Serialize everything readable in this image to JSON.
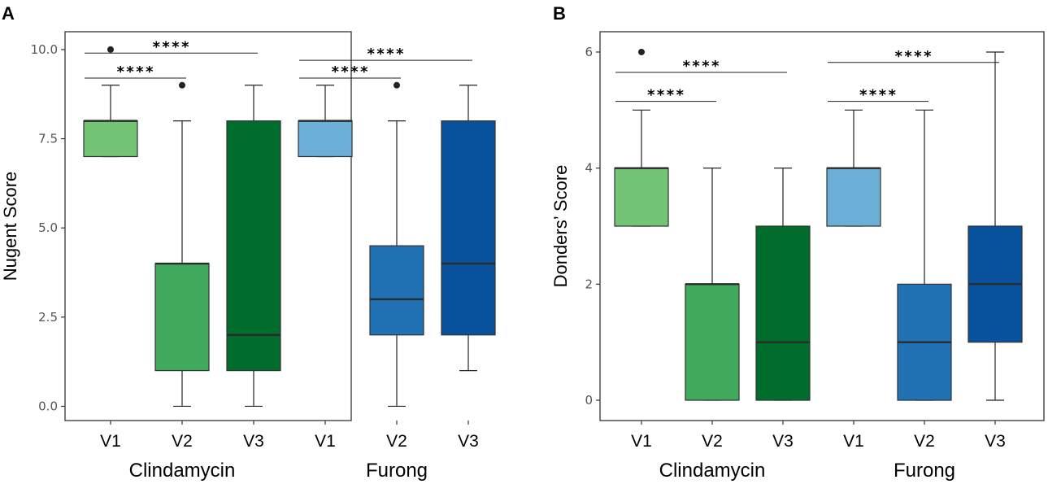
{
  "chart_data": [
    {
      "panel": "A",
      "type": "box",
      "ylabel": "Nugent Score",
      "ylim": [
        -0.4,
        10.5
      ],
      "yticks": [
        0,
        2.5,
        5,
        7.5,
        10
      ],
      "ytick_labels": [
        "0.0",
        "2.5",
        "5.0",
        "7.5",
        "10.0"
      ],
      "categories": [
        "V1",
        "V2",
        "V3",
        "V1",
        "V2",
        "V3"
      ],
      "groups": [
        {
          "label": "Clindamycin",
          "span": [
            0,
            2
          ]
        },
        {
          "label": "Furong",
          "span": [
            3,
            5
          ]
        }
      ],
      "boxes": [
        {
          "name": "Clindamycin V1",
          "whislo": 7,
          "q1": 7,
          "med": 8,
          "q3": 8,
          "whishi": 9,
          "fliers": [
            10
          ],
          "color": "#74c476"
        },
        {
          "name": "Clindamycin V2",
          "whislo": 0,
          "q1": 1,
          "med": 4,
          "q3": 4,
          "whishi": 8,
          "fliers": [
            9
          ],
          "color": "#41ab5d"
        },
        {
          "name": "Clindamycin V3",
          "whislo": 0,
          "q1": 1,
          "med": 2,
          "q3": 8,
          "whishi": 9,
          "fliers": [],
          "color": "#006d2c"
        },
        {
          "name": "Furong V1",
          "whislo": 7,
          "q1": 7,
          "med": 8,
          "q3": 8,
          "whishi": 9,
          "fliers": [],
          "color": "#6baed6"
        },
        {
          "name": "Furong V2",
          "whislo": 0,
          "q1": 2,
          "med": 3,
          "q3": 4.5,
          "whishi": 8,
          "fliers": [
            9
          ],
          "color": "#2171b5"
        },
        {
          "name": "Furong V3",
          "whislo": 1,
          "q1": 2,
          "med": 4,
          "q3": 8,
          "whishi": 9,
          "fliers": [],
          "color": "#08519c"
        }
      ],
      "significance": [
        {
          "from": 0,
          "to": 1,
          "y": 9.2,
          "label": "****"
        },
        {
          "from": 0,
          "to": 2,
          "y": 9.9,
          "label": "****"
        },
        {
          "from": 3,
          "to": 4,
          "y": 9.2,
          "label": "****"
        },
        {
          "from": 3,
          "to": 5,
          "y": 9.7,
          "label": "****"
        }
      ]
    },
    {
      "panel": "B",
      "type": "box",
      "ylabel": "Donders’ Score",
      "ylim": [
        -0.35,
        6.35
      ],
      "yticks": [
        0,
        2,
        4,
        6
      ],
      "ytick_labels": [
        "0",
        "2",
        "4",
        "6"
      ],
      "categories": [
        "V1",
        "V2",
        "V3",
        "V1",
        "V2",
        "V3"
      ],
      "groups": [
        {
          "label": "Clindamycin",
          "span": [
            0,
            2
          ]
        },
        {
          "label": "Furong",
          "span": [
            3,
            5
          ]
        }
      ],
      "boxes": [
        {
          "name": "Clindamycin V1",
          "whislo": 3,
          "q1": 3,
          "med": 4,
          "q3": 4,
          "whishi": 5,
          "fliers": [
            6
          ],
          "color": "#74c476"
        },
        {
          "name": "Clindamycin V2",
          "whislo": 0,
          "q1": 0,
          "med": 2,
          "q3": 2,
          "whishi": 4,
          "fliers": [],
          "color": "#41ab5d"
        },
        {
          "name": "Clindamycin V3",
          "whislo": 0,
          "q1": 0,
          "med": 1,
          "q3": 3,
          "whishi": 4,
          "fliers": [],
          "color": "#006d2c"
        },
        {
          "name": "Furong V1",
          "whislo": 3,
          "q1": 3,
          "med": 4,
          "q3": 4,
          "whishi": 5,
          "fliers": [],
          "color": "#6baed6"
        },
        {
          "name": "Furong V2",
          "whislo": 0,
          "q1": 0,
          "med": 1,
          "q3": 2,
          "whishi": 5,
          "fliers": [],
          "color": "#2171b5"
        },
        {
          "name": "Furong V3",
          "whislo": 0,
          "q1": 1,
          "med": 2,
          "q3": 3,
          "whishi": 6,
          "fliers": [],
          "color": "#08519c"
        }
      ],
      "significance": [
        {
          "from": 0,
          "to": 1,
          "y": 5.15,
          "label": "****"
        },
        {
          "from": 0,
          "to": 2,
          "y": 5.65,
          "label": "****"
        },
        {
          "from": 3,
          "to": 4,
          "y": 5.15,
          "label": "****"
        },
        {
          "from": 3,
          "to": 5,
          "y": 5.82,
          "label": "****"
        }
      ]
    }
  ]
}
